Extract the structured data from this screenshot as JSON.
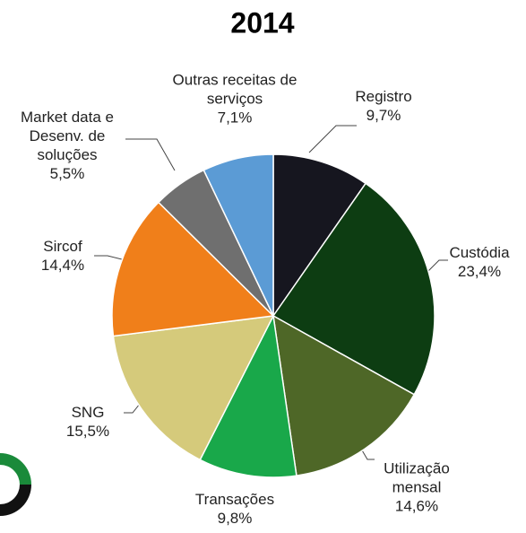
{
  "chart_data": {
    "type": "pie",
    "title": "2014",
    "categories": [
      "Registro",
      "Custódia",
      "Utilização mensal",
      "Transações",
      "SNG",
      "Sircof",
      "Market data e Desenv. de soluções",
      "Outras receitas de serviços"
    ],
    "values": [
      9.7,
      23.4,
      14.6,
      9.8,
      15.5,
      14.4,
      5.5,
      7.1
    ],
    "value_labels": [
      "9,7%",
      "23,4%",
      "14,6%",
      "9,8%",
      "15,5%",
      "14,4%",
      "5,5%",
      "7,1%"
    ],
    "colors": [
      "#16161f",
      "#0d3d12",
      "#4e6727",
      "#19a84a",
      "#d5ca7b",
      "#f07f1a",
      "#6f6f6f",
      "#5b9bd5"
    ]
  }
}
